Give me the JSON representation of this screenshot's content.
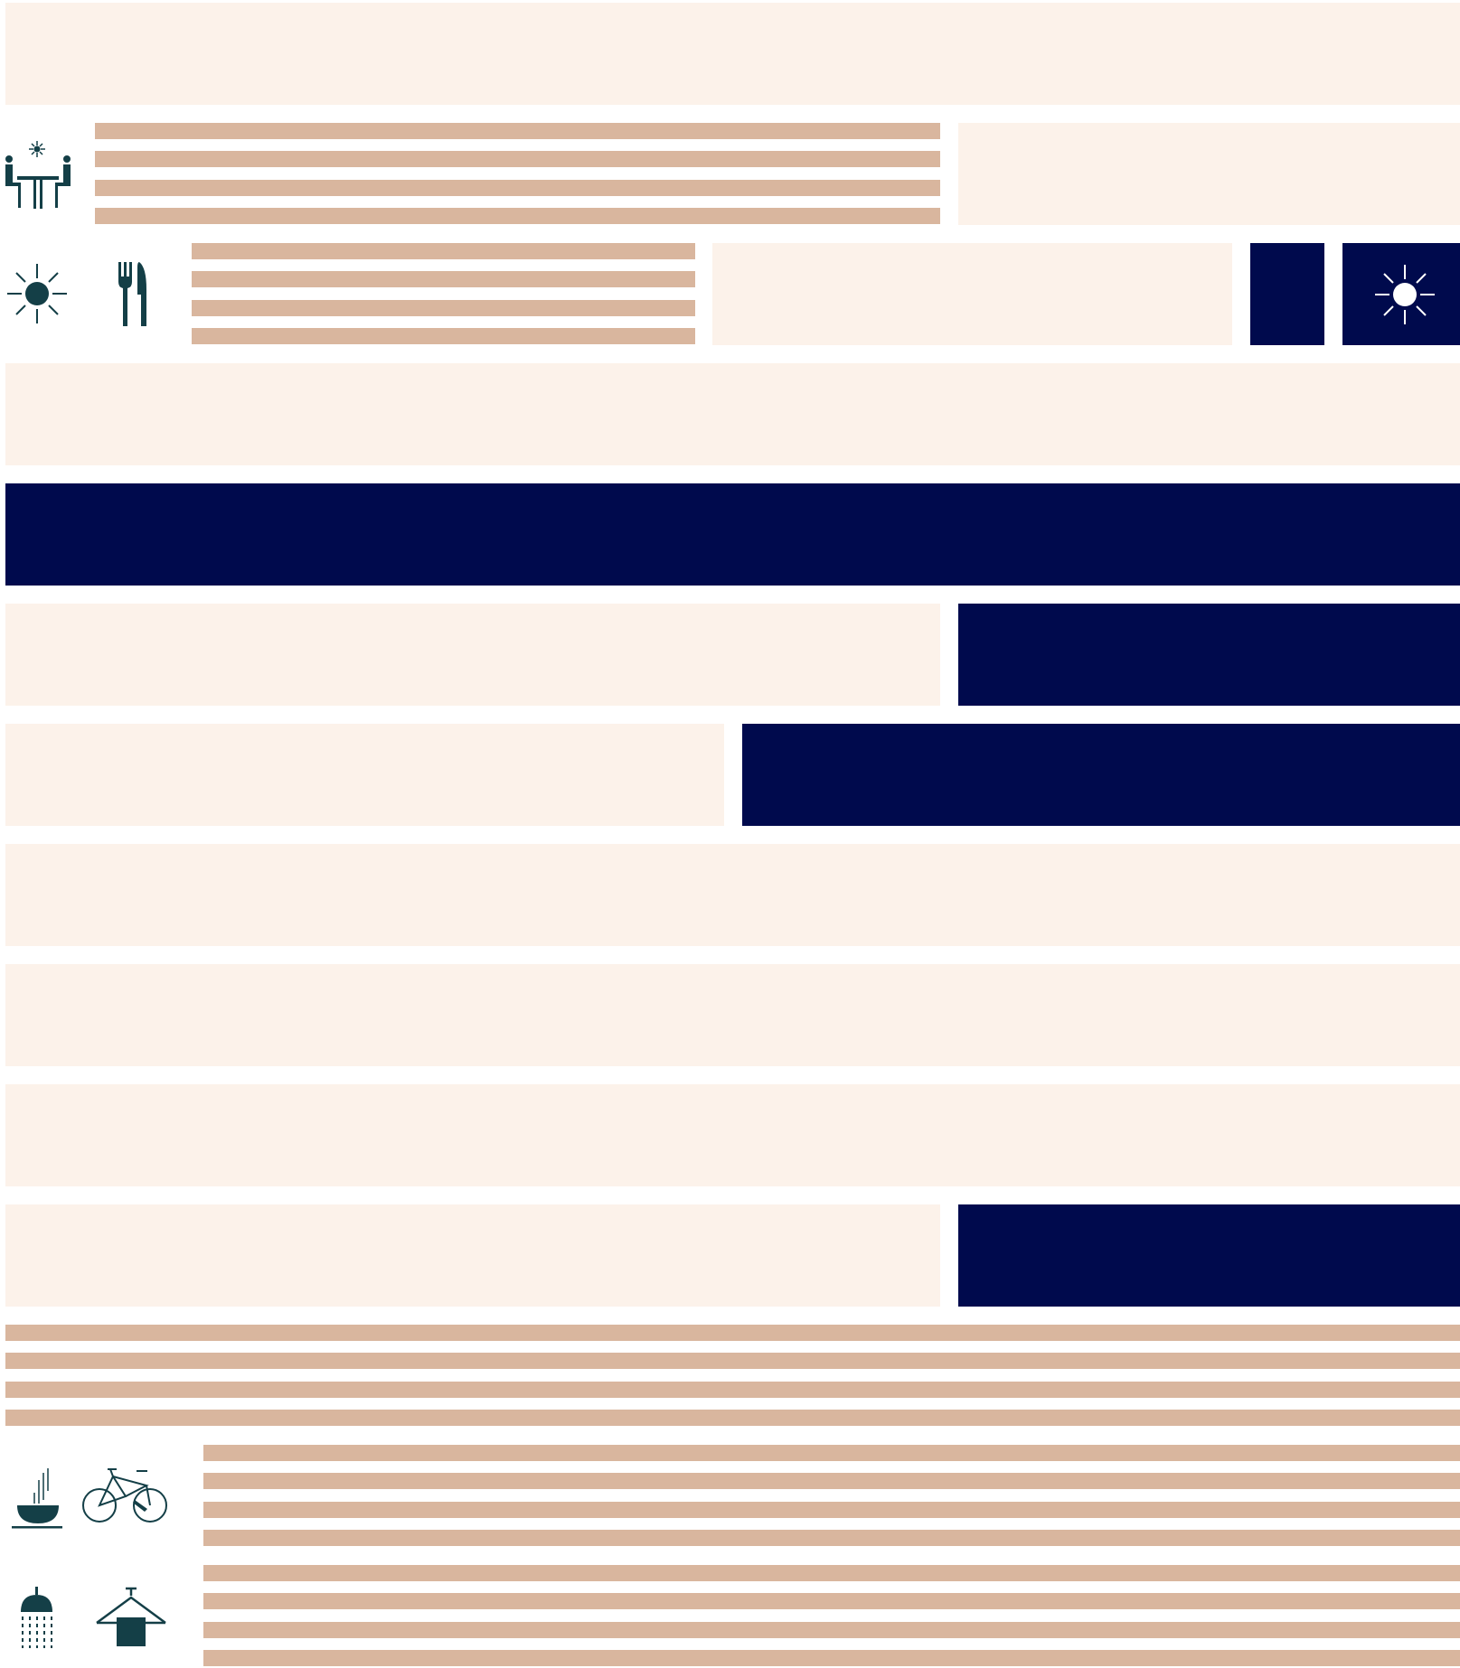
{
  "colors": {
    "panel": "#fcf2ea",
    "accent": "#000a4d",
    "stripe": "#d9b69e",
    "icon": "#143f47",
    "icon_on_accent": "#ffffff"
  },
  "icons": [
    "outdoor-dining-icon",
    "sun-icon",
    "fork-knife-icon",
    "sun-icon",
    "hot-bowl-icon",
    "bicycle-icon",
    "shower-icon",
    "towel-hanger-icon"
  ]
}
